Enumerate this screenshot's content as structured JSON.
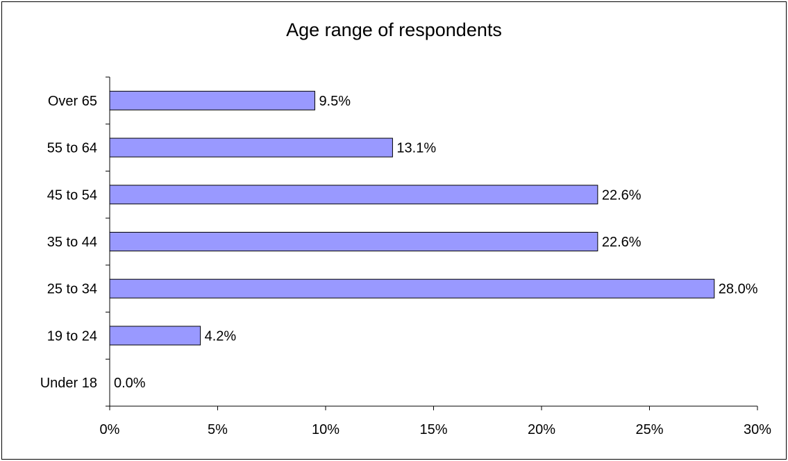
{
  "chart_data": {
    "type": "bar",
    "orientation": "horizontal",
    "title": "Age range of respondents",
    "categories": [
      "Over 65",
      "55 to 64",
      "45 to 54",
      "35 to 44",
      "25 to 34",
      "19 to 24",
      "Under 18"
    ],
    "values": [
      9.5,
      13.1,
      22.6,
      22.6,
      28.0,
      4.2,
      0.0
    ],
    "data_labels": [
      "9.5%",
      "13.1%",
      "22.6%",
      "22.6%",
      "28.0%",
      "4.2%",
      "0.0%"
    ],
    "x_ticks": [
      "0%",
      "5%",
      "10%",
      "15%",
      "20%",
      "25%",
      "30%"
    ],
    "xlim": [
      0,
      30
    ],
    "xlabel": "",
    "ylabel": "",
    "grid": false,
    "legend": "none",
    "colors": {
      "bar_fill": "#9999ff",
      "bar_stroke": "#000000",
      "axis": "#000000"
    }
  }
}
